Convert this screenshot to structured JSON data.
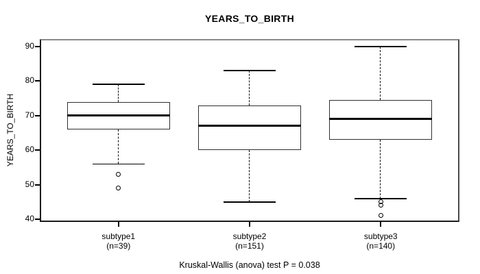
{
  "chart_data": {
    "type": "boxplot",
    "title": "YEARS_TO_BIRTH",
    "ylabel": "YEARS_TO_BIRTH",
    "footnote": "Kruskal-Wallis (anova) test P = 0.038",
    "ylim": [
      39.2,
      92.2
    ],
    "yticks": [
      40,
      50,
      60,
      70,
      80,
      90
    ],
    "line_color": "#000000",
    "background": "#ffffff",
    "grid": false,
    "groups": [
      {
        "label": "subtype1",
        "n": 39,
        "n_label": "(n=39)",
        "whisker_low": 56,
        "q1": 66,
        "median": 70,
        "q3": 74,
        "whisker_high": 79,
        "outliers": [
          53,
          49
        ]
      },
      {
        "label": "subtype2",
        "n": 151,
        "n_label": "(n=151)",
        "whisker_low": 45,
        "q1": 60,
        "median": 67,
        "q3": 73,
        "whisker_high": 83,
        "outliers": []
      },
      {
        "label": "subtype3",
        "n": 140,
        "n_label": "(n=140)",
        "whisker_low": 46,
        "q1": 63,
        "median": 69,
        "q3": 74.5,
        "whisker_high": 90,
        "outliers": [
          45,
          44,
          41
        ]
      }
    ]
  }
}
